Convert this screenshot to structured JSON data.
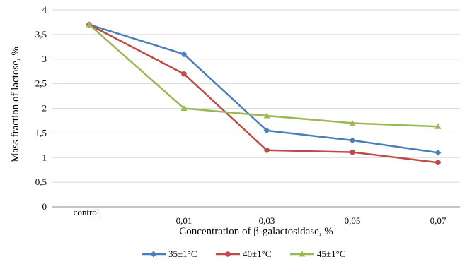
{
  "chart_data": {
    "type": "line",
    "categories": [
      "control",
      "0,01",
      "0,03",
      "0,05",
      "0,07"
    ],
    "series": [
      {
        "name": "35±1°C",
        "values": [
          3.7,
          3.1,
          1.55,
          1.35,
          1.1
        ],
        "color": "#4a7ebb",
        "marker": "diamond"
      },
      {
        "name": "40±1°C",
        "values": [
          3.7,
          2.7,
          1.15,
          1.11,
          0.9
        ],
        "color": "#be4b48",
        "marker": "circle"
      },
      {
        "name": "45±1°C",
        "values": [
          3.7,
          2.0,
          1.85,
          1.7,
          1.63
        ],
        "color": "#98b954",
        "marker": "triangle"
      }
    ],
    "yticks": [
      "0",
      "0,5",
      "1",
      "1,5",
      "2",
      "2,5",
      "3",
      "3,5",
      "4"
    ],
    "ylim": [
      0,
      4
    ],
    "xlabel": "Concentration of β-galactosidase, %",
    "ylabel": "Mass fraction of lactose, %",
    "grid": "horizontal",
    "legend": "bottom"
  }
}
